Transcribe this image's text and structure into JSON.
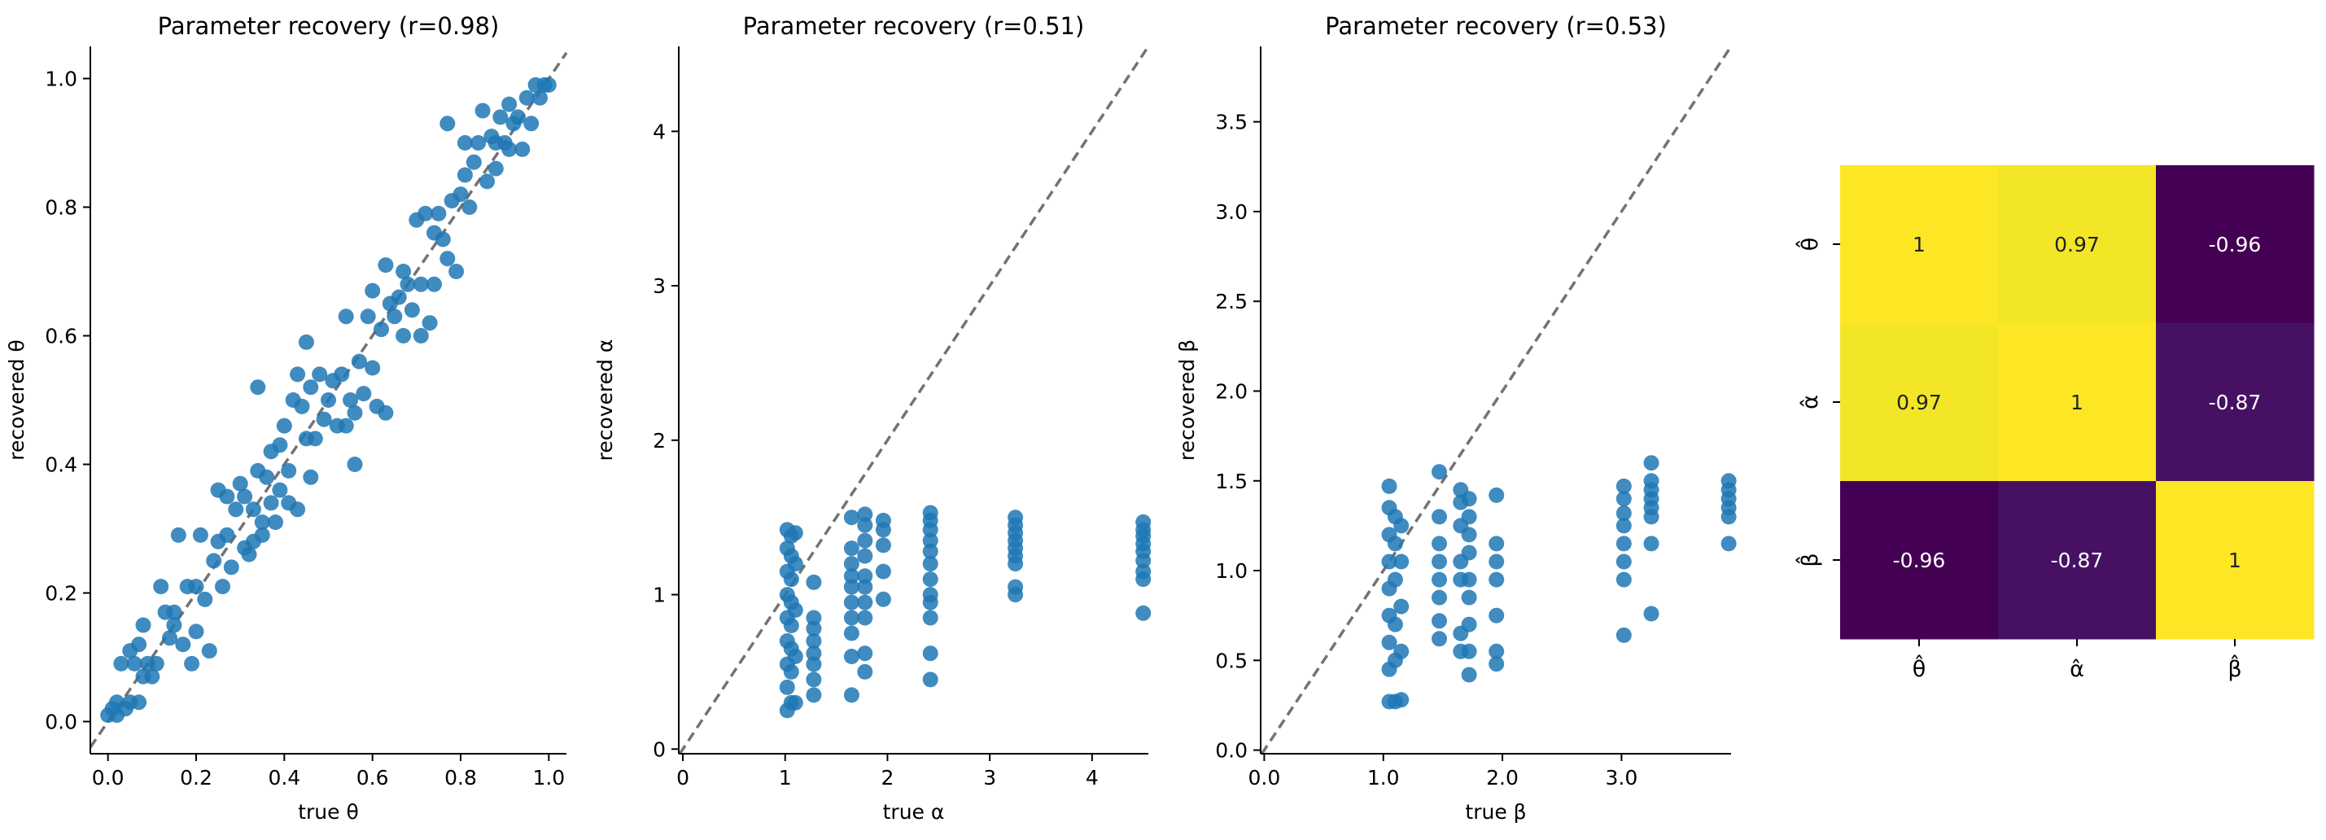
{
  "chart_data": [
    {
      "type": "scatter",
      "title": "Parameter recovery (r=0.98)",
      "xlabel": "true θ",
      "ylabel": "recovered θ",
      "xlim": [
        -0.04,
        1.04
      ],
      "ylim": [
        -0.05,
        1.05
      ],
      "xticks": [
        0.0,
        0.2,
        0.4,
        0.6,
        0.8,
        1.0
      ],
      "yticks": [
        0.0,
        0.2,
        0.4,
        0.6,
        0.8,
        1.0
      ],
      "tick_decimals": 1,
      "identity_line": true,
      "color": "#1f77b4",
      "points": [
        [
          0.0,
          0.01
        ],
        [
          0.01,
          0.02
        ],
        [
          0.02,
          0.01
        ],
        [
          0.02,
          0.03
        ],
        [
          0.03,
          0.09
        ],
        [
          0.04,
          0.02
        ],
        [
          0.05,
          0.11
        ],
        [
          0.05,
          0.03
        ],
        [
          0.06,
          0.09
        ],
        [
          0.07,
          0.03
        ],
        [
          0.07,
          0.12
        ],
        [
          0.08,
          0.15
        ],
        [
          0.08,
          0.07
        ],
        [
          0.09,
          0.09
        ],
        [
          0.1,
          0.07
        ],
        [
          0.11,
          0.09
        ],
        [
          0.12,
          0.21
        ],
        [
          0.13,
          0.17
        ],
        [
          0.14,
          0.13
        ],
        [
          0.15,
          0.17
        ],
        [
          0.15,
          0.15
        ],
        [
          0.16,
          0.29
        ],
        [
          0.17,
          0.12
        ],
        [
          0.18,
          0.21
        ],
        [
          0.19,
          0.09
        ],
        [
          0.2,
          0.21
        ],
        [
          0.2,
          0.14
        ],
        [
          0.21,
          0.29
        ],
        [
          0.22,
          0.19
        ],
        [
          0.23,
          0.11
        ],
        [
          0.24,
          0.25
        ],
        [
          0.25,
          0.36
        ],
        [
          0.25,
          0.28
        ],
        [
          0.26,
          0.21
        ],
        [
          0.27,
          0.35
        ],
        [
          0.27,
          0.29
        ],
        [
          0.28,
          0.24
        ],
        [
          0.29,
          0.33
        ],
        [
          0.3,
          0.37
        ],
        [
          0.31,
          0.27
        ],
        [
          0.31,
          0.35
        ],
        [
          0.32,
          0.26
        ],
        [
          0.33,
          0.33
        ],
        [
          0.33,
          0.28
        ],
        [
          0.34,
          0.39
        ],
        [
          0.34,
          0.52
        ],
        [
          0.35,
          0.31
        ],
        [
          0.35,
          0.29
        ],
        [
          0.36,
          0.38
        ],
        [
          0.37,
          0.42
        ],
        [
          0.37,
          0.34
        ],
        [
          0.38,
          0.31
        ],
        [
          0.39,
          0.43
        ],
        [
          0.39,
          0.36
        ],
        [
          0.4,
          0.46
        ],
        [
          0.41,
          0.39
        ],
        [
          0.41,
          0.34
        ],
        [
          0.42,
          0.5
        ],
        [
          0.43,
          0.33
        ],
        [
          0.43,
          0.54
        ],
        [
          0.44,
          0.49
        ],
        [
          0.45,
          0.44
        ],
        [
          0.45,
          0.59
        ],
        [
          0.46,
          0.38
        ],
        [
          0.46,
          0.52
        ],
        [
          0.47,
          0.44
        ],
        [
          0.48,
          0.54
        ],
        [
          0.49,
          0.47
        ],
        [
          0.5,
          0.5
        ],
        [
          0.51,
          0.53
        ],
        [
          0.52,
          0.46
        ],
        [
          0.53,
          0.54
        ],
        [
          0.54,
          0.63
        ],
        [
          0.54,
          0.46
        ],
        [
          0.55,
          0.5
        ],
        [
          0.56,
          0.48
        ],
        [
          0.56,
          0.4
        ],
        [
          0.57,
          0.56
        ],
        [
          0.58,
          0.51
        ],
        [
          0.59,
          0.63
        ],
        [
          0.6,
          0.55
        ],
        [
          0.6,
          0.67
        ],
        [
          0.61,
          0.49
        ],
        [
          0.62,
          0.61
        ],
        [
          0.63,
          0.71
        ],
        [
          0.63,
          0.48
        ],
        [
          0.64,
          0.65
        ],
        [
          0.65,
          0.63
        ],
        [
          0.66,
          0.66
        ],
        [
          0.67,
          0.7
        ],
        [
          0.67,
          0.6
        ],
        [
          0.68,
          0.68
        ],
        [
          0.69,
          0.64
        ],
        [
          0.7,
          0.78
        ],
        [
          0.71,
          0.68
        ],
        [
          0.71,
          0.6
        ],
        [
          0.72,
          0.79
        ],
        [
          0.73,
          0.62
        ],
        [
          0.74,
          0.76
        ],
        [
          0.74,
          0.68
        ],
        [
          0.75,
          0.79
        ],
        [
          0.76,
          0.75
        ],
        [
          0.77,
          0.93
        ],
        [
          0.77,
          0.72
        ],
        [
          0.78,
          0.81
        ],
        [
          0.79,
          0.7
        ],
        [
          0.8,
          0.82
        ],
        [
          0.81,
          0.85
        ],
        [
          0.81,
          0.9
        ],
        [
          0.82,
          0.8
        ],
        [
          0.83,
          0.87
        ],
        [
          0.84,
          0.9
        ],
        [
          0.85,
          0.95
        ],
        [
          0.86,
          0.84
        ],
        [
          0.87,
          0.91
        ],
        [
          0.88,
          0.9
        ],
        [
          0.88,
          0.86
        ],
        [
          0.89,
          0.94
        ],
        [
          0.9,
          0.9
        ],
        [
          0.91,
          0.96
        ],
        [
          0.91,
          0.89
        ],
        [
          0.92,
          0.93
        ],
        [
          0.93,
          0.94
        ],
        [
          0.94,
          0.89
        ],
        [
          0.95,
          0.97
        ],
        [
          0.96,
          0.93
        ],
        [
          0.97,
          0.99
        ],
        [
          0.98,
          0.97
        ],
        [
          0.99,
          0.99
        ],
        [
          1.0,
          0.99
        ]
      ]
    },
    {
      "type": "scatter",
      "title": "Parameter recovery (r=0.51)",
      "xlabel": "true α",
      "ylabel": "recovered α",
      "xlim": [
        -0.04,
        4.55
      ],
      "ylim": [
        -0.03,
        4.55
      ],
      "xticks": [
        0,
        1,
        2,
        3,
        4
      ],
      "yticks": [
        0,
        1,
        2,
        3,
        4
      ],
      "tick_decimals": 0,
      "identity_line": true,
      "color": "#1f77b4",
      "points": [
        [
          1.02,
          0.25
        ],
        [
          1.02,
          0.4
        ],
        [
          1.02,
          0.55
        ],
        [
          1.02,
          0.7
        ],
        [
          1.02,
          0.85
        ],
        [
          1.02,
          1.0
        ],
        [
          1.02,
          1.15
        ],
        [
          1.02,
          1.3
        ],
        [
          1.02,
          1.42
        ],
        [
          1.06,
          0.3
        ],
        [
          1.06,
          0.5
        ],
        [
          1.06,
          0.65
        ],
        [
          1.06,
          0.8
        ],
        [
          1.06,
          0.95
        ],
        [
          1.06,
          1.1
        ],
        [
          1.06,
          1.25
        ],
        [
          1.06,
          1.38
        ],
        [
          1.1,
          0.3
        ],
        [
          1.1,
          0.6
        ],
        [
          1.1,
          0.9
        ],
        [
          1.1,
          1.2
        ],
        [
          1.1,
          1.4
        ],
        [
          1.28,
          0.35
        ],
        [
          1.28,
          0.45
        ],
        [
          1.28,
          0.55
        ],
        [
          1.28,
          0.62
        ],
        [
          1.28,
          0.7
        ],
        [
          1.28,
          0.78
        ],
        [
          1.28,
          0.85
        ],
        [
          1.28,
          1.08
        ],
        [
          1.65,
          0.35
        ],
        [
          1.65,
          0.6
        ],
        [
          1.65,
          0.75
        ],
        [
          1.65,
          0.85
        ],
        [
          1.65,
          0.95
        ],
        [
          1.65,
          1.05
        ],
        [
          1.65,
          1.12
        ],
        [
          1.65,
          1.2
        ],
        [
          1.65,
          1.3
        ],
        [
          1.65,
          1.5
        ],
        [
          1.78,
          0.5
        ],
        [
          1.78,
          0.62
        ],
        [
          1.78,
          0.85
        ],
        [
          1.78,
          0.95
        ],
        [
          1.78,
          1.05
        ],
        [
          1.78,
          1.12
        ],
        [
          1.78,
          1.25
        ],
        [
          1.78,
          1.35
        ],
        [
          1.78,
          1.45
        ],
        [
          1.78,
          1.52
        ],
        [
          1.96,
          0.97
        ],
        [
          1.96,
          1.15
        ],
        [
          1.96,
          1.32
        ],
        [
          1.96,
          1.42
        ],
        [
          1.96,
          1.48
        ],
        [
          2.42,
          0.45
        ],
        [
          2.42,
          0.62
        ],
        [
          2.42,
          0.85
        ],
        [
          2.42,
          0.95
        ],
        [
          2.42,
          1.0
        ],
        [
          2.42,
          1.1
        ],
        [
          2.42,
          1.2
        ],
        [
          2.42,
          1.28
        ],
        [
          2.42,
          1.35
        ],
        [
          2.42,
          1.42
        ],
        [
          2.42,
          1.48
        ],
        [
          2.42,
          1.53
        ],
        [
          3.25,
          1.0
        ],
        [
          3.25,
          1.05
        ],
        [
          3.25,
          1.2
        ],
        [
          3.25,
          1.25
        ],
        [
          3.25,
          1.3
        ],
        [
          3.25,
          1.35
        ],
        [
          3.25,
          1.4
        ],
        [
          3.25,
          1.45
        ],
        [
          3.25,
          1.5
        ],
        [
          4.5,
          0.88
        ],
        [
          4.5,
          1.1
        ],
        [
          4.5,
          1.15
        ],
        [
          4.5,
          1.22
        ],
        [
          4.5,
          1.28
        ],
        [
          4.5,
          1.33
        ],
        [
          4.5,
          1.38
        ],
        [
          4.5,
          1.42
        ],
        [
          4.5,
          1.47
        ]
      ]
    },
    {
      "type": "scatter",
      "title": "Parameter recovery (r=0.53)",
      "xlabel": "true β",
      "ylabel": "recovered β",
      "xlim": [
        -0.03,
        3.92
      ],
      "ylim": [
        -0.02,
        3.92
      ],
      "xticks": [
        0,
        1,
        2,
        3
      ],
      "yticks": [
        0.0,
        0.5,
        1.0,
        1.5,
        2.0,
        2.5,
        3.0,
        3.5
      ],
      "tick_decimals": 1,
      "identity_line": true,
      "color": "#1f77b4",
      "points": [
        [
          1.05,
          0.27
        ],
        [
          1.05,
          0.45
        ],
        [
          1.05,
          0.6
        ],
        [
          1.05,
          0.75
        ],
        [
          1.05,
          0.9
        ],
        [
          1.05,
          1.05
        ],
        [
          1.05,
          1.2
        ],
        [
          1.05,
          1.35
        ],
        [
          1.05,
          1.47
        ],
        [
          1.1,
          0.27
        ],
        [
          1.1,
          0.5
        ],
        [
          1.1,
          0.7
        ],
        [
          1.1,
          0.95
        ],
        [
          1.1,
          1.15
        ],
        [
          1.1,
          1.3
        ],
        [
          1.15,
          0.28
        ],
        [
          1.15,
          0.55
        ],
        [
          1.15,
          0.8
        ],
        [
          1.15,
          1.05
        ],
        [
          1.15,
          1.25
        ],
        [
          1.47,
          0.62
        ],
        [
          1.47,
          0.72
        ],
        [
          1.47,
          0.85
        ],
        [
          1.47,
          0.95
        ],
        [
          1.47,
          1.05
        ],
        [
          1.47,
          1.15
        ],
        [
          1.47,
          1.3
        ],
        [
          1.47,
          1.55
        ],
        [
          1.65,
          0.55
        ],
        [
          1.65,
          0.65
        ],
        [
          1.65,
          0.95
        ],
        [
          1.65,
          1.05
        ],
        [
          1.65,
          1.25
        ],
        [
          1.65,
          1.38
        ],
        [
          1.65,
          1.45
        ],
        [
          1.72,
          0.42
        ],
        [
          1.72,
          0.55
        ],
        [
          1.72,
          0.7
        ],
        [
          1.72,
          0.85
        ],
        [
          1.72,
          0.95
        ],
        [
          1.72,
          1.1
        ],
        [
          1.72,
          1.2
        ],
        [
          1.72,
          1.3
        ],
        [
          1.72,
          1.4
        ],
        [
          1.95,
          0.48
        ],
        [
          1.95,
          0.55
        ],
        [
          1.95,
          0.75
        ],
        [
          1.95,
          0.95
        ],
        [
          1.95,
          1.05
        ],
        [
          1.95,
          1.15
        ],
        [
          1.95,
          1.42
        ],
        [
          3.02,
          0.64
        ],
        [
          3.02,
          0.95
        ],
        [
          3.02,
          1.05
        ],
        [
          3.02,
          1.15
        ],
        [
          3.02,
          1.25
        ],
        [
          3.02,
          1.32
        ],
        [
          3.02,
          1.4
        ],
        [
          3.02,
          1.47
        ],
        [
          3.25,
          0.76
        ],
        [
          3.25,
          1.15
        ],
        [
          3.25,
          1.3
        ],
        [
          3.25,
          1.35
        ],
        [
          3.25,
          1.4
        ],
        [
          3.25,
          1.45
        ],
        [
          3.25,
          1.5
        ],
        [
          3.25,
          1.6
        ],
        [
          3.9,
          1.15
        ],
        [
          3.9,
          1.3
        ],
        [
          3.9,
          1.35
        ],
        [
          3.9,
          1.4
        ],
        [
          3.9,
          1.45
        ],
        [
          3.9,
          1.5
        ]
      ]
    },
    {
      "type": "heatmap",
      "row_labels": [
        "θ̂",
        "α̂",
        "β̂"
      ],
      "col_labels": [
        "θ̂",
        "α̂",
        "β̂"
      ],
      "values": [
        [
          1,
          0.97,
          -0.96
        ],
        [
          0.97,
          1,
          -0.87
        ],
        [
          -0.96,
          -0.87,
          1
        ]
      ],
      "colorscale": "viridis",
      "vmin": -0.96,
      "vmax": 1
    }
  ]
}
